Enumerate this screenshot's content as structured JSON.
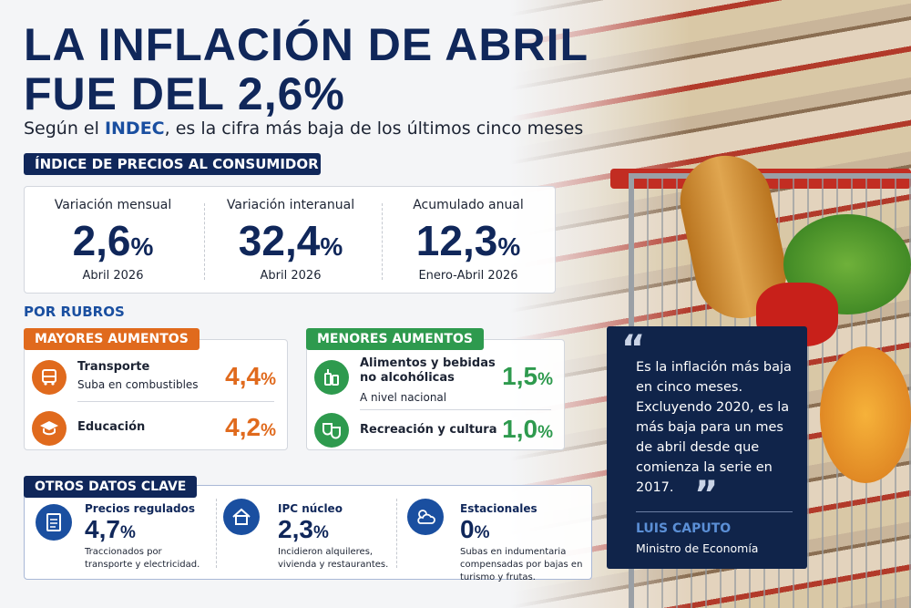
{
  "header": {
    "title_line1": "LA INFLACIÓN DE ABRIL",
    "title_line2": "FUE DEL 2,6%",
    "subtitle_pre": "Según el ",
    "subtitle_bold": "INDEC",
    "subtitle_post": ", es la cifra más baja de los últimos cinco meses"
  },
  "ipc": {
    "label": "ÍNDICE DE PRECIOS AL CONSUMIDOR",
    "cards": [
      {
        "title": "Variación mensual",
        "value": "2,6",
        "unit": "%",
        "period": "Abril 2026"
      },
      {
        "title": "Variación interanual",
        "value": "32,4",
        "unit": "%",
        "period": "Abril 2026"
      },
      {
        "title": "Acumulado anual",
        "value": "12,3",
        "unit": "%",
        "period": "Enero-Abril 2026"
      }
    ]
  },
  "rubros": {
    "label": "POR RUBROS",
    "mayores": {
      "label": "MAYORES AUMENTOS",
      "items": [
        {
          "name": "Transporte",
          "note": "Suba en combustibles",
          "value": "4,4",
          "unit": "%"
        },
        {
          "name": "Educación",
          "value": "4,2",
          "unit": "%"
        }
      ]
    },
    "menores": {
      "label": "MENORES AUMENTOS",
      "items": [
        {
          "name": "Alimentos y bebidas no alcohólicas",
          "note": "A nivel nacional",
          "value": "1,5",
          "unit": "%"
        },
        {
          "name": "Recreación y cultura",
          "value": "1,0",
          "unit": "%"
        }
      ]
    }
  },
  "otros": {
    "label": "OTROS DATOS CLAVE",
    "items": [
      {
        "name": "Precios regulados",
        "value": "4,7",
        "unit": "%",
        "note": "Traccionados por transporte y electricidad."
      },
      {
        "name": "IPC núcleo",
        "value": "2,3",
        "unit": "%",
        "note": "Incidieron alquileres, vivienda y restaurantes."
      },
      {
        "name": "Estacionales",
        "value": "0",
        "unit": "%",
        "note": "Subas en indumentaria compensadas por bajas en turismo y frutas."
      }
    ]
  },
  "quote": {
    "open": "“",
    "text": "Es la inflación más baja en cinco meses. Excluyendo 2020, es la más baja para un mes de abril desde que comienza la serie en 2017.",
    "close": "”",
    "author": "LUIS CAPUTO",
    "role": "Ministro de Economía"
  }
}
